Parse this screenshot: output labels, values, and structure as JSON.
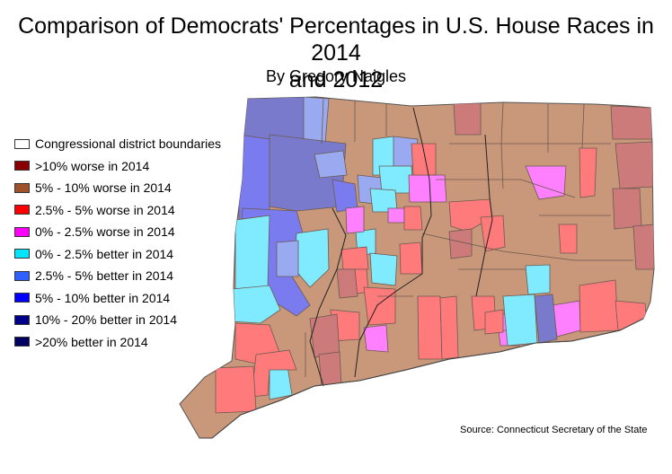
{
  "title": {
    "line1": "Comparison of Democrats' Percentages in U.S. House Races in 2014",
    "line2": "and 2012"
  },
  "subtitle": "By Gregory Naigles",
  "legend": [
    {
      "label": "Congressional district boundaries",
      "color": "#ffffff"
    },
    {
      "label": ">10% worse in 2014",
      "color": "#8b0000"
    },
    {
      "label": "5% - 10% worse in 2014",
      "color": "#a0522d"
    },
    {
      "label": "2.5% - 5% worse in 2014",
      "color": "#ff0000"
    },
    {
      "label": "0% - 2.5% worse in 2014",
      "color": "#ff00ff"
    },
    {
      "label": "0% - 2.5% better in 2014",
      "color": "#00e5ff"
    },
    {
      "label": "2.5% - 5% better in 2014",
      "color": "#3060ff"
    },
    {
      "label": "5% - 10% better in 2014",
      "color": "#0000ff"
    },
    {
      "label": "10% - 20% better in 2014",
      "color": "#000088"
    },
    {
      "label": ">20% better in 2014",
      "color": "#000060"
    }
  ],
  "map_colors": {
    "worse_5_10": "#c9977a",
    "worse_10": "#cc7a7a",
    "worse_2_5": "#ff7b7b",
    "worse_0_2": "#ff80ff",
    "better_0_2": "#80eaff",
    "better_2_5": "#9aaaf0",
    "better_5_10": "#7b7bf0",
    "better_10_20": "#7a7acc"
  },
  "source": "Source: Connecticut Secretary of the State"
}
